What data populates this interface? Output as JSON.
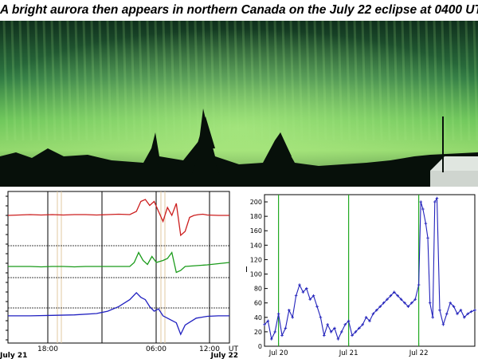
{
  "title": "A bright aurora then appears in northern Canada on the July 22 eclipse at 0400 UT",
  "photo": {
    "icon": "aurora-photo"
  },
  "colors": {
    "red_trace": "#cc1f1f",
    "green_trace": "#1a9b1a",
    "blue_trace": "#2020c0",
    "index_line": "#2222bb",
    "marker": "#22aa22"
  },
  "chart_data": [
    {
      "type": "line",
      "x_tick_labels": [
        "July 21",
        "18:00",
        "06:00",
        "12:00",
        "UT",
        "July 22"
      ],
      "series": [
        {
          "color": "red",
          "x": [
            0,
            0.05,
            0.1,
            0.15,
            0.2,
            0.25,
            0.3,
            0.35,
            0.4,
            0.45,
            0.5,
            0.55,
            0.58,
            0.6,
            0.62,
            0.64,
            0.66,
            0.68,
            0.7,
            0.72,
            0.74,
            0.76,
            0.78,
            0.8,
            0.82,
            0.84,
            0.86,
            0.88,
            0.9,
            0.95,
            1.0
          ],
          "y": [
            0.4,
            0.39,
            0.38,
            0.39,
            0.38,
            0.39,
            0.38,
            0.38,
            0.39,
            0.38,
            0.37,
            0.38,
            0.3,
            0.05,
            0.0,
            0.15,
            0.05,
            0.3,
            0.55,
            0.2,
            0.4,
            0.1,
            0.9,
            0.8,
            0.45,
            0.4,
            0.38,
            0.37,
            0.39,
            0.4,
            0.4
          ]
        },
        {
          "color": "green",
          "x": [
            0,
            0.05,
            0.1,
            0.15,
            0.2,
            0.25,
            0.3,
            0.35,
            0.4,
            0.45,
            0.5,
            0.55,
            0.57,
            0.59,
            0.61,
            0.63,
            0.65,
            0.67,
            0.7,
            0.72,
            0.74,
            0.76,
            0.78,
            0.8,
            0.85,
            0.9,
            0.95,
            1.0
          ],
          "y": [
            0.4,
            0.4,
            0.4,
            0.41,
            0.4,
            0.4,
            0.41,
            0.4,
            0.4,
            0.4,
            0.4,
            0.4,
            0.3,
            0.05,
            0.25,
            0.35,
            0.15,
            0.3,
            0.25,
            0.2,
            0.05,
            0.55,
            0.5,
            0.4,
            0.38,
            0.36,
            0.33,
            0.3
          ]
        },
        {
          "color": "blue",
          "x": [
            0,
            0.1,
            0.2,
            0.3,
            0.4,
            0.45,
            0.5,
            0.55,
            0.58,
            0.6,
            0.62,
            0.64,
            0.66,
            0.68,
            0.7,
            0.72,
            0.74,
            0.76,
            0.78,
            0.8,
            0.85,
            0.9,
            0.95,
            1.0
          ],
          "y": [
            0.55,
            0.55,
            0.54,
            0.53,
            0.5,
            0.45,
            0.35,
            0.2,
            0.05,
            0.15,
            0.2,
            0.35,
            0.45,
            0.4,
            0.55,
            0.6,
            0.65,
            0.7,
            0.95,
            0.75,
            0.6,
            0.56,
            0.55,
            0.55
          ]
        }
      ]
    },
    {
      "type": "line",
      "ylabel": "I",
      "ylim": [
        0,
        210
      ],
      "y_ticks": [
        0,
        20,
        40,
        60,
        80,
        100,
        120,
        140,
        160,
        180,
        200
      ],
      "x_ticks": [
        {
          "x": 0.6,
          "label": "Jul 20"
        },
        {
          "x": 1.6,
          "label": "Jul 21"
        },
        {
          "x": 2.6,
          "label": "Jul 22"
        }
      ],
      "xlim": [
        0.4,
        3.4
      ],
      "markers_x": [
        0.6,
        1.6,
        2.6
      ],
      "series": [
        {
          "name": "",
          "x": [
            0.4,
            0.45,
            0.5,
            0.55,
            0.6,
            0.65,
            0.7,
            0.75,
            0.8,
            0.85,
            0.9,
            0.95,
            1.0,
            1.05,
            1.1,
            1.15,
            1.2,
            1.25,
            1.3,
            1.35,
            1.4,
            1.45,
            1.5,
            1.55,
            1.6,
            1.65,
            1.7,
            1.75,
            1.8,
            1.85,
            1.9,
            1.95,
            2.0,
            2.05,
            2.1,
            2.15,
            2.2,
            2.25,
            2.3,
            2.35,
            2.4,
            2.45,
            2.5,
            2.55,
            2.6,
            2.63,
            2.66,
            2.7,
            2.73,
            2.76,
            2.8,
            2.83,
            2.86,
            2.9,
            2.95,
            3.0,
            3.05,
            3.1,
            3.15,
            3.2,
            3.25,
            3.3,
            3.35,
            3.4
          ],
          "y": [
            30,
            35,
            10,
            20,
            45,
            15,
            25,
            50,
            40,
            70,
            85,
            75,
            80,
            65,
            70,
            55,
            40,
            15,
            30,
            20,
            25,
            10,
            20,
            30,
            35,
            15,
            20,
            25,
            30,
            40,
            35,
            45,
            50,
            55,
            60,
            65,
            70,
            75,
            70,
            65,
            60,
            55,
            60,
            65,
            85,
            200,
            190,
            170,
            150,
            60,
            40,
            200,
            205,
            50,
            30,
            45,
            60,
            55,
            45,
            50,
            40,
            45,
            48,
            50
          ]
        }
      ]
    }
  ]
}
